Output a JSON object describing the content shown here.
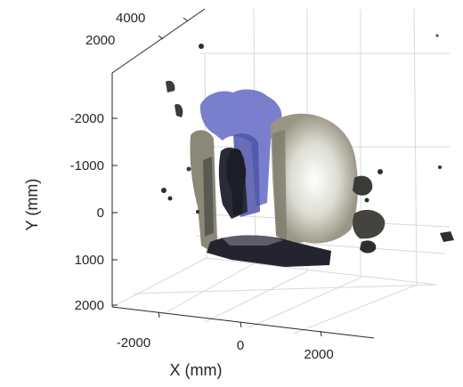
{
  "chart_data": {
    "type": "scatter",
    "projection": "3d",
    "title": "",
    "xlabel": "X (mm)",
    "ylabel": "Y (mm)",
    "zlabel": "",
    "x_ticks": [
      "-2000",
      "0",
      "2000"
    ],
    "y_ticks": [
      "-2000",
      "-1000",
      "0",
      "1000",
      "2000"
    ],
    "z_ticks": [
      "2000",
      "4000"
    ],
    "grid": true,
    "legend": "none",
    "colors": {
      "points_blue": "#6f74c9",
      "points_dark": "#2a2a33",
      "points_gray": "#8b8878",
      "points_light": "#e6e6df",
      "axis": "#262626",
      "grid": "#d9d9d9"
    }
  }
}
